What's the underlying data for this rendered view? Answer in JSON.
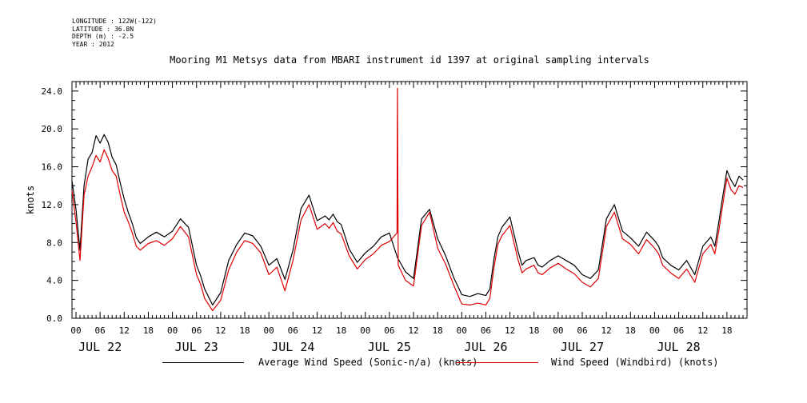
{
  "header": {
    "meta_lines": [
      "LONGITUDE : 122W(-122)",
      "LATITUDE : 36.8N",
      "DEPTH (m) : -2.5",
      "YEAR : 2012"
    ],
    "title": "Mooring M1 Metsys data from MBARI instrument id 1397 at original sampling intervals"
  },
  "colors": {
    "series1": "#000000",
    "series2": "#e00000",
    "axis": "#000000"
  },
  "chart_data": {
    "type": "line",
    "title": "Mooring M1 Metsys data from MBARI instrument id 1397 at original sampling intervals",
    "ylabel": "knots",
    "xlabel": "",
    "ylim": [
      0,
      25
    ],
    "yticks": [
      "0.0",
      "4.0",
      "8.0",
      "12.0",
      "16.0",
      "20.0",
      "24.0"
    ],
    "x_range_hours": [
      -1,
      167
    ],
    "hour_ticks": [
      "00",
      "06",
      "12",
      "18",
      "00",
      "06",
      "12",
      "18",
      "00",
      "06",
      "12",
      "18",
      "00",
      "06",
      "12",
      "18",
      "00",
      "06",
      "12",
      "18",
      "00",
      "06",
      "12",
      "18",
      "00",
      "06",
      "12",
      "18"
    ],
    "day_labels": [
      "JUL 22",
      "JUL 23",
      "JUL 24",
      "JUL 25",
      "JUL 26",
      "JUL 27",
      "JUL 28"
    ],
    "grid": false,
    "legend_position": "bottom",
    "series": [
      {
        "name": "Average Wind Speed (Sonic-n/a) (knots)",
        "x_hours": [
          -1,
          0,
          1,
          2,
          3,
          4,
          5,
          6,
          7,
          8,
          9,
          10,
          11,
          12,
          13,
          14,
          15,
          16,
          18,
          20,
          22,
          24,
          26,
          28,
          30,
          31,
          32,
          34,
          36,
          38,
          40,
          42,
          44,
          46,
          48,
          50,
          52,
          54,
          56,
          58,
          60,
          62,
          63,
          64,
          65,
          66,
          68,
          70,
          72,
          74,
          76,
          78,
          80,
          82,
          84,
          86,
          88,
          90,
          92,
          94,
          96,
          98,
          100,
          102,
          103,
          104,
          105,
          106,
          108,
          110,
          111,
          112,
          114,
          115,
          116,
          118,
          120,
          122,
          124,
          126,
          128,
          130,
          132,
          134,
          136,
          138,
          140,
          142,
          144,
          145,
          146,
          148,
          150,
          152,
          154,
          156,
          158,
          159,
          160,
          161,
          162,
          163,
          164,
          165,
          166
        ],
        "values": [
          14.5,
          11.5,
          7.2,
          14.0,
          16.8,
          17.5,
          19.3,
          18.5,
          19.4,
          18.6,
          17.0,
          16.2,
          14.3,
          12.6,
          11.2,
          10.0,
          8.5,
          7.9,
          8.6,
          9.1,
          8.6,
          9.2,
          10.5,
          9.6,
          5.6,
          4.5,
          3.1,
          1.4,
          2.7,
          6.1,
          7.8,
          9.0,
          8.7,
          7.6,
          5.6,
          6.3,
          4.1,
          7.2,
          11.6,
          13.0,
          10.3,
          10.8,
          10.4,
          11.0,
          10.2,
          9.9,
          7.3,
          5.9,
          6.9,
          7.6,
          8.6,
          9.0,
          6.4,
          4.9,
          4.2,
          10.5,
          11.5,
          8.4,
          6.6,
          4.3,
          2.5,
          2.3,
          2.6,
          2.4,
          3.1,
          6.2,
          8.6,
          9.6,
          10.7,
          7.1,
          5.6,
          6.1,
          6.4,
          5.6,
          5.4,
          6.1,
          6.6,
          6.1,
          5.6,
          4.6,
          4.2,
          5.1,
          10.5,
          12.0,
          9.2,
          8.5,
          7.6,
          9.1,
          8.2,
          7.6,
          6.4,
          5.6,
          5.1,
          6.1,
          4.6,
          7.6,
          8.6,
          7.6,
          10.2,
          13.0,
          15.6,
          14.6,
          13.9,
          15.0,
          14.6
        ]
      },
      {
        "name": "Wind Speed (Windbird) (knots)",
        "x_hours": [
          -1,
          0,
          1,
          2,
          3,
          4,
          5,
          6,
          7,
          8,
          9,
          10,
          11,
          12,
          13,
          14,
          15,
          16,
          18,
          20,
          22,
          24,
          26,
          28,
          30,
          31,
          32,
          34,
          36,
          38,
          40,
          42,
          44,
          46,
          48,
          50,
          52,
          54,
          56,
          58,
          60,
          62,
          63,
          64,
          65,
          66,
          68,
          70,
          72,
          74,
          76,
          78,
          79.9,
          80,
          80.2,
          82,
          84,
          86,
          88,
          90,
          92,
          94,
          96,
          98,
          100,
          102,
          103,
          104,
          105,
          106,
          108,
          110,
          111,
          112,
          114,
          115,
          116,
          118,
          120,
          122,
          124,
          126,
          128,
          130,
          132,
          134,
          136,
          138,
          140,
          142,
          144,
          145,
          146,
          148,
          150,
          152,
          154,
          156,
          158,
          159,
          160,
          161,
          162,
          163,
          164,
          165,
          166
        ],
        "values": [
          13.5,
          10.2,
          6.1,
          13.0,
          15.0,
          16.0,
          17.2,
          16.5,
          17.8,
          16.9,
          15.6,
          15.0,
          13.0,
          11.2,
          10.2,
          9.0,
          7.6,
          7.2,
          7.9,
          8.2,
          7.7,
          8.4,
          9.7,
          8.6,
          4.6,
          3.6,
          2.1,
          0.8,
          1.9,
          5.1,
          7.0,
          8.2,
          7.9,
          6.9,
          4.6,
          5.4,
          2.9,
          6.1,
          10.4,
          12.0,
          9.4,
          10.0,
          9.5,
          10.1,
          9.2,
          8.9,
          6.6,
          5.2,
          6.2,
          6.8,
          7.7,
          8.1,
          9.0,
          24.3,
          5.6,
          4.0,
          3.4,
          9.8,
          11.2,
          7.4,
          5.7,
          3.5,
          1.5,
          1.4,
          1.6,
          1.4,
          2.1,
          5.3,
          7.8,
          8.7,
          9.8,
          6.2,
          4.8,
          5.2,
          5.6,
          4.8,
          4.6,
          5.3,
          5.8,
          5.2,
          4.7,
          3.8,
          3.3,
          4.2,
          9.7,
          11.2,
          8.4,
          7.8,
          6.8,
          8.3,
          7.4,
          6.8,
          5.6,
          4.8,
          4.2,
          5.2,
          3.8,
          6.8,
          7.8,
          6.8,
          9.3,
          12.1,
          14.8,
          13.6,
          13.1,
          14.0,
          13.8
        ]
      }
    ]
  }
}
